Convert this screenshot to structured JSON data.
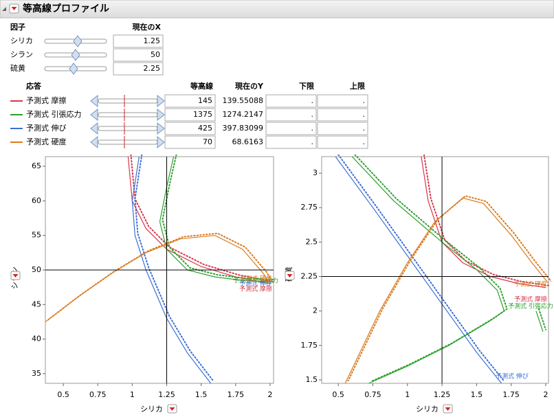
{
  "header": {
    "title": "等高線プロファイル"
  },
  "factors": {
    "headers": [
      "因子",
      "現在のX"
    ],
    "rows": [
      {
        "name": "シリカ",
        "value": 1.25
      },
      {
        "name": "シラン",
        "value": 50
      },
      {
        "name": "硫黄",
        "value": 2.25
      }
    ]
  },
  "responses": {
    "headers": [
      "応答",
      "等高線",
      "現在のY",
      "下限",
      "上限"
    ],
    "rows": [
      {
        "label": "予測式 摩擦",
        "color": "#d9344a",
        "contour": 145,
        "current": 139.55088,
        "lower": ".",
        "upper": "."
      },
      {
        "label": "予測式 引張応力",
        "color": "#2ca02c",
        "contour": 1375,
        "current": 1274.2147,
        "lower": ".",
        "upper": "."
      },
      {
        "label": "予測式 伸び",
        "color": "#3b6fd4",
        "contour": 425,
        "current": 397.83099,
        "lower": ".",
        "upper": "."
      },
      {
        "label": "予測式 硬度",
        "color": "#d97b1f",
        "contour": 70,
        "current": 68.6163,
        "lower": ".",
        "upper": "."
      }
    ]
  },
  "plots": [
    {
      "x_label": "シリカ",
      "y_label": "シラン",
      "xlim": [
        0.37,
        2.025
      ],
      "ylim": [
        33.6,
        66.4
      ],
      "xticks": [
        0.5,
        0.75,
        1,
        1.25,
        1.5,
        1.75,
        2
      ],
      "yticks": [
        35,
        40,
        45,
        50,
        55,
        60,
        65
      ],
      "curves": [
        {
          "x": [
            0.97,
            1.0,
            1.1,
            1.25,
            1.5,
            1.75,
            2.0
          ],
          "y": [
            66.4,
            60,
            56,
            53,
            50.5,
            49,
            48
          ]
        },
        {
          "x": [
            1.3,
            1.25,
            1.2,
            1.25,
            1.4,
            1.6,
            1.8,
            2.0
          ],
          "y": [
            66.4,
            62,
            57,
            53,
            50,
            49,
            48.5,
            48.3
          ]
        },
        {
          "x": [
            1.05,
            1.0,
            1.02,
            1.1,
            1.25,
            1.4,
            1.57
          ],
          "y": [
            66.4,
            60,
            55,
            50,
            43,
            38,
            33.6
          ]
        },
        {
          "x": [
            0.37,
            0.6,
            0.85,
            1.1,
            1.35,
            1.6,
            1.8,
            1.95,
            2.0
          ],
          "y": [
            42.5,
            46,
            49.5,
            52.5,
            54.5,
            55,
            53,
            49.5,
            48
          ]
        }
      ]
    },
    {
      "x_label": "シリカ",
      "y_label": "硫黄",
      "xlim": [
        0.38,
        2.02
      ],
      "ylim": [
        1.475,
        3.12
      ],
      "xticks": [
        0.5,
        0.75,
        1,
        1.25,
        1.5,
        1.75,
        2
      ],
      "yticks": [
        1.5,
        1.75,
        2,
        2.25,
        2.5,
        2.75,
        3
      ],
      "curves": [
        {
          "x": [
            1.1,
            1.15,
            1.25,
            1.4,
            1.6,
            1.8,
            2.0
          ],
          "y": [
            3.12,
            2.8,
            2.5,
            2.35,
            2.25,
            2.2,
            2.17
          ]
        },
        {
          "x": [
            0.6,
            0.9,
            1.25,
            1.5,
            1.65,
            1.7,
            1.6,
            1.3,
            1.0,
            0.72,
            null,
            1.93,
            1.98
          ],
          "y": [
            3.12,
            2.8,
            2.5,
            2.3,
            2.15,
            2.0,
            1.93,
            1.75,
            1.6,
            1.475,
            null,
            2.0,
            1.85
          ]
        },
        {
          "x": [
            0.48,
            0.75,
            1.0,
            1.25,
            1.5,
            1.68
          ],
          "y": [
            3.12,
            2.75,
            2.4,
            2.05,
            1.7,
            1.475
          ]
        },
        {
          "x": [
            0.55,
            0.8,
            1.0,
            1.2,
            1.4,
            1.55,
            1.75,
            1.9,
            2.02
          ],
          "y": [
            1.475,
            2.0,
            2.35,
            2.65,
            2.82,
            2.78,
            2.55,
            2.35,
            2.2
          ]
        }
      ]
    }
  ]
}
